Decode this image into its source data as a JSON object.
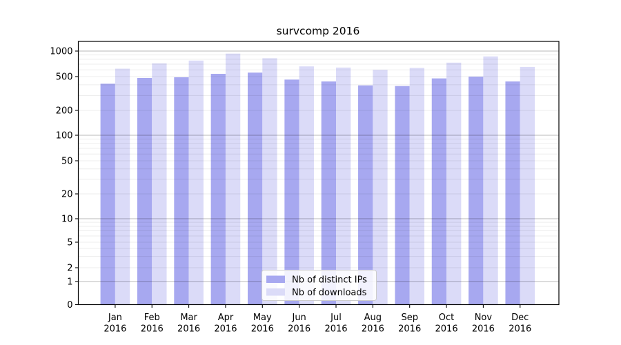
{
  "title": "survcomp 2016",
  "chart_data": {
    "type": "bar",
    "title": "survcomp 2016",
    "year": "2016",
    "categories": [
      "Jan",
      "Feb",
      "Mar",
      "Apr",
      "May",
      "Jun",
      "Jul",
      "Aug",
      "Sep",
      "Oct",
      "Nov",
      "Dec"
    ],
    "series": [
      {
        "name": "Nb of distinct IPs",
        "color": "#a7a8f0",
        "values": [
          412,
          482,
          491,
          539,
          557,
          461,
          438,
          394,
          387,
          476,
          500,
          438
        ]
      },
      {
        "name": "Nb of downloads",
        "color": "#dbdbf8",
        "values": [
          620,
          716,
          772,
          933,
          823,
          660,
          639,
          601,
          632,
          730,
          865,
          651
        ]
      }
    ],
    "yscale": "symlog",
    "ylim": [
      0,
      1300
    ],
    "yticks": [
      0,
      1,
      2,
      5,
      10,
      20,
      50,
      100,
      200,
      500,
      1000
    ],
    "major_grid_values": [
      1,
      10,
      100,
      1000
    ],
    "grid": true,
    "legend_position": "lower center",
    "colors": {
      "major_grid": "#b9b9b9",
      "minor_grid": "#ededed",
      "axis": "#000000",
      "legend_border": "#cccccc"
    }
  }
}
